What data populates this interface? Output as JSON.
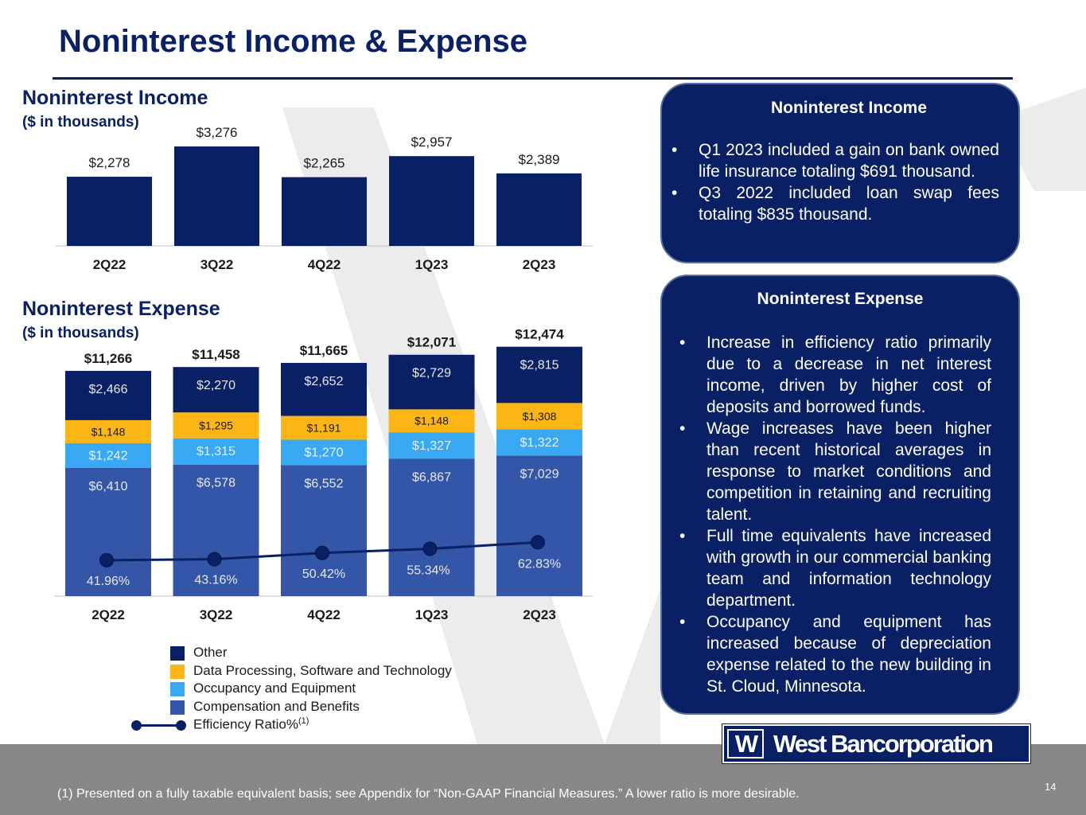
{
  "page": {
    "title": "Noninterest Income & Expense",
    "page_number": "14",
    "footnote": "(1) Presented on a fully taxable equivalent basis; see Appendix for “Non-GAAP Financial Measures.” A lower ratio is more desirable.",
    "logo_mark": "W",
    "logo_text": "West Bancorporation"
  },
  "colors": {
    "navy": "#0a2064",
    "other": "#0a2064",
    "data_processing": "#fbb514",
    "occupancy": "#38a9f2",
    "compensation": "#3456a8",
    "footer": "#878787"
  },
  "income_section": {
    "title": "Noninterest Income",
    "subtitle": "($ in thousands)"
  },
  "expense_section": {
    "title": "Noninterest Expense",
    "subtitle": "($ in thousands)"
  },
  "chart_data": [
    {
      "type": "bar",
      "title": "Noninterest Income",
      "ylabel": "($ in thousands)",
      "categories": [
        "2Q22",
        "3Q22",
        "4Q22",
        "1Q23",
        "2Q23"
      ],
      "values": [
        2278,
        3276,
        2265,
        2957,
        2389
      ],
      "value_labels": [
        "$2,278",
        "$3,276",
        "$2,265",
        "$2,957",
        "$2,389"
      ],
      "ylim": [
        0,
        3800
      ],
      "color": "#0a2064"
    },
    {
      "type": "bar",
      "stacked": true,
      "title": "Noninterest Expense",
      "ylabel": "($ in thousands)",
      "categories": [
        "2Q22",
        "3Q22",
        "4Q22",
        "1Q23",
        "2Q23"
      ],
      "ylim": [
        0,
        13500
      ],
      "totals": [
        11266,
        11458,
        11665,
        12071,
        12474
      ],
      "total_labels": [
        "$11,266",
        "$11,458",
        "$11,665",
        "$12,071",
        "$12,474"
      ],
      "series": [
        {
          "name": "Compensation and Benefits",
          "color": "#3456a8",
          "values": [
            6410,
            6578,
            6552,
            6867,
            7029
          ],
          "labels": [
            "$6,410",
            "$6,578",
            "$6,552",
            "$6,867",
            "$7,029"
          ]
        },
        {
          "name": "Occupancy and Equipment",
          "color": "#38a9f2",
          "values": [
            1242,
            1315,
            1270,
            1327,
            1322
          ],
          "labels": [
            "$1,242",
            "$1,315",
            "$1,270",
            "$1,327",
            "$1,322"
          ]
        },
        {
          "name": "Data Processing, Software and Technology",
          "color": "#fbb514",
          "values": [
            1148,
            1295,
            1191,
            1148,
            1308
          ],
          "labels": [
            "$1,148",
            "$1,295",
            "$1,191",
            "$1,148",
            "$1,308"
          ]
        },
        {
          "name": "Other",
          "color": "#0a2064",
          "values": [
            2466,
            2270,
            2652,
            2729,
            2815
          ],
          "labels": [
            "$2,466",
            "$2,270",
            "$2,652",
            "$2,729",
            "$2,815"
          ]
        }
      ],
      "line_series": {
        "name": "Efficiency Ratio%",
        "superscript": "(1)",
        "values": [
          41.96,
          43.16,
          50.42,
          55.34,
          62.83
        ],
        "labels": [
          "41.96%",
          "43.16%",
          "50.42%",
          "55.34%",
          "62.83%"
        ],
        "ylim": [
          0,
          225
        ]
      },
      "legend": [
        {
          "label": "Other",
          "color": "#0a2064"
        },
        {
          "label": "Data Processing, Software and Technology",
          "color": "#fbb514"
        },
        {
          "label": "Occupancy and Equipment",
          "color": "#38a9f2"
        },
        {
          "label": "Compensation and Benefits",
          "color": "#3456a8"
        },
        {
          "label": "Efficiency Ratio%",
          "sup": "(1)",
          "line": true
        }
      ]
    }
  ],
  "panels": {
    "income": {
      "title": "Noninterest Income",
      "bullets": [
        "Q1 2023 included a gain on bank owned life insurance totaling $691 thousand.",
        "Q3 2022 included loan swap fees totaling $835 thousand."
      ]
    },
    "expense": {
      "title": "Noninterest Expense",
      "bullets": [
        "Increase in efficiency ratio primarily due to a decrease in net interest income, driven by higher cost of deposits and borrowed funds.",
        "Wage increases have been higher than recent historical averages in response to market conditions and competition in retaining and recruiting talent.",
        "Full time equivalents have increased with growth in our commercial banking team and information technology department.",
        "Occupancy and equipment has increased because of depreciation expense related to the new building in St. Cloud, Minnesota."
      ]
    }
  }
}
